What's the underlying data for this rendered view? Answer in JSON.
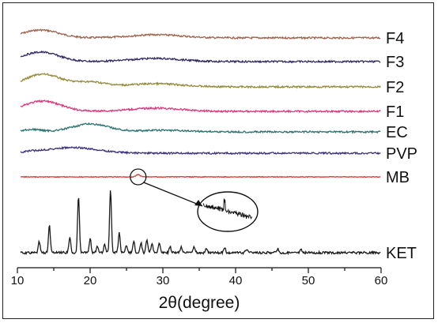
{
  "chart_data": {
    "type": "line",
    "title": "",
    "xlabel": "2θ(degree)",
    "ylabel": "",
    "xlim": [
      10,
      60
    ],
    "x_ticks": [
      "10",
      "20",
      "30",
      "40",
      "50",
      "60"
    ],
    "grid": false,
    "legend": "labels at right end of each trace",
    "series": [
      {
        "name": "F4",
        "color": "#a0604a",
        "pattern": "amorphous",
        "humps": [
          [
            13.2,
            10,
            3.5
          ],
          [
            29,
            4,
            5
          ]
        ]
      },
      {
        "name": "F3",
        "color": "#332a66",
        "pattern": "amorphous",
        "humps": [
          [
            13.2,
            12,
            3.5
          ],
          [
            29,
            4,
            5
          ]
        ]
      },
      {
        "name": "F2",
        "color": "#948a38",
        "pattern": "amorphous",
        "humps": [
          [
            13.5,
            16,
            3.5
          ],
          [
            20,
            6,
            3
          ],
          [
            29,
            4,
            5
          ]
        ]
      },
      {
        "name": "F1",
        "color": "#e0357a",
        "pattern": "amorphous",
        "humps": [
          [
            13.5,
            13,
            3.5
          ],
          [
            29,
            4,
            5
          ]
        ]
      },
      {
        "name": "EC",
        "color": "#2a7370",
        "pattern": "amorphous",
        "humps": [
          [
            12,
            3,
            2
          ],
          [
            20,
            10,
            3.5
          ],
          [
            30,
            2,
            5
          ]
        ]
      },
      {
        "name": "PVP",
        "color": "#3c2f80",
        "pattern": "amorphous",
        "humps": [
          [
            12,
            1,
            2
          ],
          [
            17.5,
            7,
            5
          ]
        ]
      },
      {
        "name": "MB",
        "color": "#e0332a",
        "pattern": "flat",
        "humps": [
          [
            26.6,
            3,
            0.4
          ]
        ]
      },
      {
        "name": "KET",
        "color": "#1a1a1a",
        "pattern": "crystalline",
        "peaks": [
          [
            13.0,
            14
          ],
          [
            14.4,
            35
          ],
          [
            17.2,
            20
          ],
          [
            18.4,
            72
          ],
          [
            20.0,
            18
          ],
          [
            21.0,
            8
          ],
          [
            22.0,
            10
          ],
          [
            22.8,
            80
          ],
          [
            24.0,
            25
          ],
          [
            25.0,
            10
          ],
          [
            26.0,
            15
          ],
          [
            27.0,
            12
          ],
          [
            27.8,
            16
          ],
          [
            28.5,
            12
          ],
          [
            29.5,
            13
          ],
          [
            31.0,
            8
          ],
          [
            32.5,
            7
          ],
          [
            34.3,
            8
          ],
          [
            36.0,
            6
          ],
          [
            38.5,
            6
          ],
          [
            41.5,
            5
          ],
          [
            45.8,
            5
          ],
          [
            49.0,
            4
          ]
        ]
      }
    ],
    "annotation": {
      "target_series": "MB",
      "target_x": 26.6,
      "description": "zoomed inset of MB trace showing small peak"
    }
  }
}
